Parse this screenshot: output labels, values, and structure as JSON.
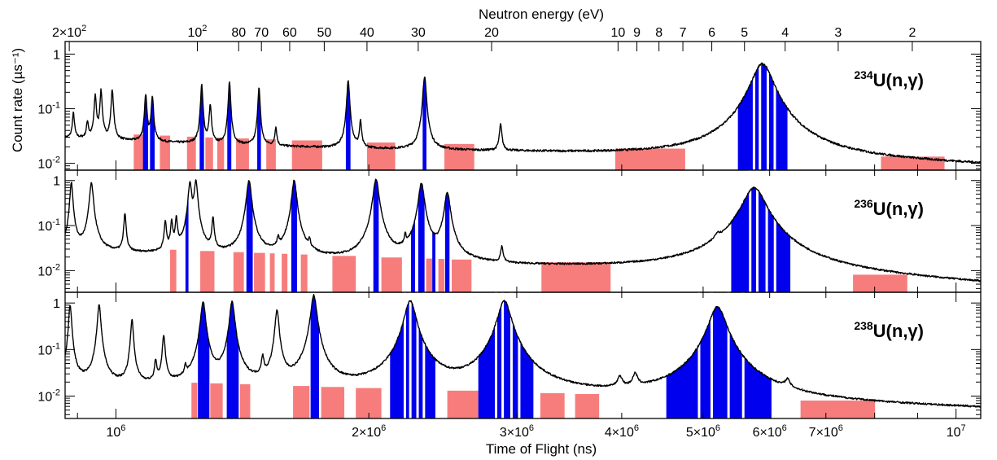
{
  "chart_data": {
    "type": "line",
    "x_axis": {
      "label": "Time of Flight (ns)",
      "scale": "log",
      "range": [
        870000,
        10700000
      ],
      "tick_labels": [
        "10^6",
        "2×10^6",
        "3×10^6",
        "4×10^6",
        "5×10^6",
        "6×10^6",
        "7×10^6",
        "10^7"
      ],
      "tick_values": [
        1000000,
        2000000,
        3000000,
        4000000,
        5000000,
        6000000,
        7000000,
        10000000
      ]
    },
    "top_axis": {
      "label": "Neutron energy (eV)",
      "scale": "reciprocal",
      "ticks": [
        {
          "label": "2×10^2",
          "tof_ns": 880000
        },
        {
          "label": "10^2",
          "tof_ns": 1250000
        },
        {
          "label": "80",
          "tof_ns": 1400000
        },
        {
          "label": "70",
          "tof_ns": 1490000
        },
        {
          "label": "60",
          "tof_ns": 1610000
        },
        {
          "label": "50",
          "tof_ns": 1770000
        },
        {
          "label": "40",
          "tof_ns": 1990000
        },
        {
          "label": "30",
          "tof_ns": 2290000
        },
        {
          "label": "20",
          "tof_ns": 2800000
        },
        {
          "label": "10",
          "tof_ns": 3960000
        },
        {
          "label": "9",
          "tof_ns": 4170000
        },
        {
          "label": "8",
          "tof_ns": 4430000
        },
        {
          "label": "7",
          "tof_ns": 4730000
        },
        {
          "label": "6",
          "tof_ns": 5120000
        },
        {
          "label": "5",
          "tof_ns": 5600000
        },
        {
          "label": "4",
          "tof_ns": 6260000
        },
        {
          "label": "3",
          "tof_ns": 7240000
        },
        {
          "label": "2",
          "tof_ns": 8870000
        }
      ]
    },
    "y_axis": {
      "label": "Count rate (µs⁻¹)",
      "scale": "log",
      "tick_labels": [
        "1",
        "10^-1",
        "10^-2"
      ]
    },
    "colors": {
      "trace": "#000000",
      "fitted_resonance_band": "#0000ee",
      "background_region": "#f77d7d"
    },
    "panels": [
      {
        "isotope": "234U(n,γ)",
        "mass": "234",
        "reaction": "U(n,γ)",
        "ylim": [
          0.0075,
          1.7
        ],
        "baseline": {
          "tof_ns": [
            880000,
            1000000,
            1300000,
            2000000,
            3000000,
            5000000,
            10700000
          ],
          "rate": [
            0.029,
            0.026,
            0.022,
            0.018,
            0.016,
            0.013,
            0.009
          ]
        },
        "resonances": [
          {
            "tof_ns": 890000,
            "peak": 0.055,
            "width": 0.0012
          },
          {
            "tof_ns": 925000,
            "peak": 0.03,
            "width": 0.0012
          },
          {
            "tof_ns": 945000,
            "peak": 0.15,
            "width": 0.0012
          },
          {
            "tof_ns": 960000,
            "peak": 0.19,
            "width": 0.0012
          },
          {
            "tof_ns": 990000,
            "peak": 0.2,
            "width": 0.0012
          },
          {
            "tof_ns": 1085000,
            "peak": 0.16,
            "width": 0.0012
          },
          {
            "tof_ns": 1105000,
            "peak": 0.15,
            "width": 0.0012
          },
          {
            "tof_ns": 1265000,
            "peak": 0.25,
            "width": 0.0012
          },
          {
            "tof_ns": 1295000,
            "peak": 0.095,
            "width": 0.0012
          },
          {
            "tof_ns": 1365000,
            "peak": 0.28,
            "width": 0.0012
          },
          {
            "tof_ns": 1480000,
            "peak": 0.22,
            "width": 0.0012
          },
          {
            "tof_ns": 1550000,
            "peak": 0.025,
            "width": 0.0012
          },
          {
            "tof_ns": 1890000,
            "peak": 0.3,
            "width": 0.0015
          },
          {
            "tof_ns": 1955000,
            "peak": 0.04,
            "width": 0.0012
          },
          {
            "tof_ns": 2330000,
            "peak": 0.37,
            "width": 0.0018
          },
          {
            "tof_ns": 2870000,
            "peak": 0.034,
            "width": 0.0015
          },
          {
            "tof_ns": 5880000,
            "peak": 0.65,
            "width": 0.012
          }
        ],
        "fit_bands_tof_ns": [
          [
            1077000,
            1092000
          ],
          [
            1098000,
            1112000
          ],
          [
            1258000,
            1273000
          ],
          [
            1357000,
            1372000
          ],
          [
            1473000,
            1488000
          ],
          [
            1878000,
            1902000
          ],
          [
            2318000,
            2342000
          ],
          [
            5500000,
            6300000
          ]
        ],
        "background_regions_tof_ns": [
          [
            1050000,
            1080000
          ],
          [
            1128000,
            1160000
          ],
          [
            1215000,
            1245000
          ],
          [
            1278000,
            1305000
          ],
          [
            1320000,
            1345000
          ],
          [
            1390000,
            1440000
          ],
          [
            1510000,
            1550000
          ],
          [
            1620000,
            1760000
          ],
          [
            1990000,
            2150000
          ],
          [
            2460000,
            2670000
          ],
          [
            3930000,
            4760000
          ],
          [
            8140000,
            9690000
          ]
        ]
      },
      {
        "isotope": "236U(n,γ)",
        "mass": "236",
        "reaction": "U(n,γ)",
        "ylim": [
          0.0033,
          1.7
        ],
        "baseline": {
          "tof_ns": [
            880000,
            1000000,
            1300000,
            2000000,
            3000000,
            5000000,
            10700000
          ],
          "rate": [
            0.026,
            0.024,
            0.02,
            0.015,
            0.012,
            0.01,
            0.0045
          ]
        },
        "resonances": [
          {
            "tof_ns": 885000,
            "peak": 0.9,
            "width": 0.0015
          },
          {
            "tof_ns": 935000,
            "peak": 0.85,
            "width": 0.002
          },
          {
            "tof_ns": 1025000,
            "peak": 0.16,
            "width": 0.0012
          },
          {
            "tof_ns": 1145000,
            "peak": 0.1,
            "width": 0.0012
          },
          {
            "tof_ns": 1165000,
            "peak": 0.1,
            "width": 0.0012
          },
          {
            "tof_ns": 1180000,
            "peak": 0.12,
            "width": 0.0012
          },
          {
            "tof_ns": 1225000,
            "peak": 0.88,
            "width": 0.0018
          },
          {
            "tof_ns": 1245000,
            "peak": 0.95,
            "width": 0.0018
          },
          {
            "tof_ns": 1305000,
            "peak": 0.12,
            "width": 0.0012
          },
          {
            "tof_ns": 1440000,
            "peak": 0.97,
            "width": 0.0025
          },
          {
            "tof_ns": 1560000,
            "peak": 0.022,
            "width": 0.0012
          },
          {
            "tof_ns": 1630000,
            "peak": 0.98,
            "width": 0.0025
          },
          {
            "tof_ns": 1700000,
            "peak": 0.018,
            "width": 0.0012
          },
          {
            "tof_ns": 2040000,
            "peak": 1.05,
            "width": 0.003
          },
          {
            "tof_ns": 2210000,
            "peak": 0.025,
            "width": 0.0012
          },
          {
            "tof_ns": 2310000,
            "peak": 0.85,
            "width": 0.003
          },
          {
            "tof_ns": 2480000,
            "peak": 0.52,
            "width": 0.003
          },
          {
            "tof_ns": 2880000,
            "peak": 0.019,
            "width": 0.0015
          },
          {
            "tof_ns": 5200000,
            "peak": 0.016,
            "width": 0.003
          },
          {
            "tof_ns": 5750000,
            "peak": 0.68,
            "width": 0.012
          }
        ],
        "fit_bands_tof_ns": [
          [
            1210000,
            1220000
          ],
          [
            1430000,
            1455000
          ],
          [
            1617000,
            1643000
          ],
          [
            2025000,
            2055000
          ],
          [
            2245000,
            2270000
          ],
          [
            2290000,
            2330000
          ],
          [
            2380000,
            2400000
          ],
          [
            2465000,
            2495000
          ],
          [
            5400000,
            6350000
          ]
        ],
        "background_regions_tof_ns": [
          [
            1160000,
            1180000
          ],
          [
            1260000,
            1310000
          ],
          [
            1380000,
            1420000
          ],
          [
            1460000,
            1505000
          ],
          [
            1525000,
            1545000
          ],
          [
            1575000,
            1600000
          ],
          [
            1660000,
            1690000
          ],
          [
            1810000,
            1930000
          ],
          [
            2070000,
            2190000
          ],
          [
            2340000,
            2380000
          ],
          [
            2420000,
            2460000
          ],
          [
            2510000,
            2650000
          ],
          [
            3210000,
            3880000
          ],
          [
            7540000,
            8750000
          ]
        ]
      },
      {
        "isotope": "238U(n,γ)",
        "mass": "238",
        "reaction": "U(n,γ)",
        "ylim": [
          0.0033,
          1.7
        ],
        "baseline": {
          "tof_ns": [
            880000,
            1000000,
            1300000,
            2000000,
            3000000,
            5000000,
            10700000
          ],
          "rate": [
            0.018,
            0.016,
            0.014,
            0.011,
            0.009,
            0.007,
            0.005
          ]
        },
        "resonances": [
          {
            "tof_ns": 882000,
            "peak": 0.9,
            "width": 0.0015
          },
          {
            "tof_ns": 955000,
            "peak": 0.88,
            "width": 0.0018
          },
          {
            "tof_ns": 1045000,
            "peak": 0.42,
            "width": 0.0015
          },
          {
            "tof_ns": 1115000,
            "peak": 0.04,
            "width": 0.0012
          },
          {
            "tof_ns": 1140000,
            "peak": 0.18,
            "width": 0.0015
          },
          {
            "tof_ns": 1210000,
            "peak": 0.018,
            "width": 0.0012
          },
          {
            "tof_ns": 1270000,
            "peak": 1.05,
            "width": 0.0025
          },
          {
            "tof_ns": 1375000,
            "peak": 1.08,
            "width": 0.0025
          },
          {
            "tof_ns": 1495000,
            "peak": 0.045,
            "width": 0.0015
          },
          {
            "tof_ns": 1555000,
            "peak": 0.7,
            "width": 0.002
          },
          {
            "tof_ns": 1720000,
            "peak": 1.45,
            "width": 0.003
          },
          {
            "tof_ns": 2240000,
            "peak": 1.1,
            "width": 0.006
          },
          {
            "tof_ns": 2900000,
            "peak": 1.1,
            "width": 0.007
          },
          {
            "tof_ns": 3980000,
            "peak": 0.011,
            "width": 0.003
          },
          {
            "tof_ns": 4150000,
            "peak": 0.014,
            "width": 0.003
          },
          {
            "tof_ns": 6300000,
            "peak": 0.0075,
            "width": 0.003
          },
          {
            "tof_ns": 5200000,
            "peak": 0.82,
            "width": 0.009
          }
        ],
        "fit_bands_tof_ns": [
          [
            1252000,
            1292000
          ],
          [
            1355000,
            1400000
          ],
          [
            1705000,
            1745000
          ],
          [
            2120000,
            2400000
          ],
          [
            2700000,
            3140000
          ],
          [
            4520000,
            6030000
          ]
        ],
        "background_regions_tof_ns": [
          [
            1230000,
            1250000
          ],
          [
            1295000,
            1340000
          ],
          [
            1405000,
            1445000
          ],
          [
            1625000,
            1700000
          ],
          [
            1755000,
            1870000
          ],
          [
            1930000,
            2070000
          ],
          [
            2480000,
            2700000
          ],
          [
            3200000,
            3420000
          ],
          [
            3520000,
            3760000
          ],
          [
            6530000,
            8010000
          ]
        ]
      }
    ]
  }
}
